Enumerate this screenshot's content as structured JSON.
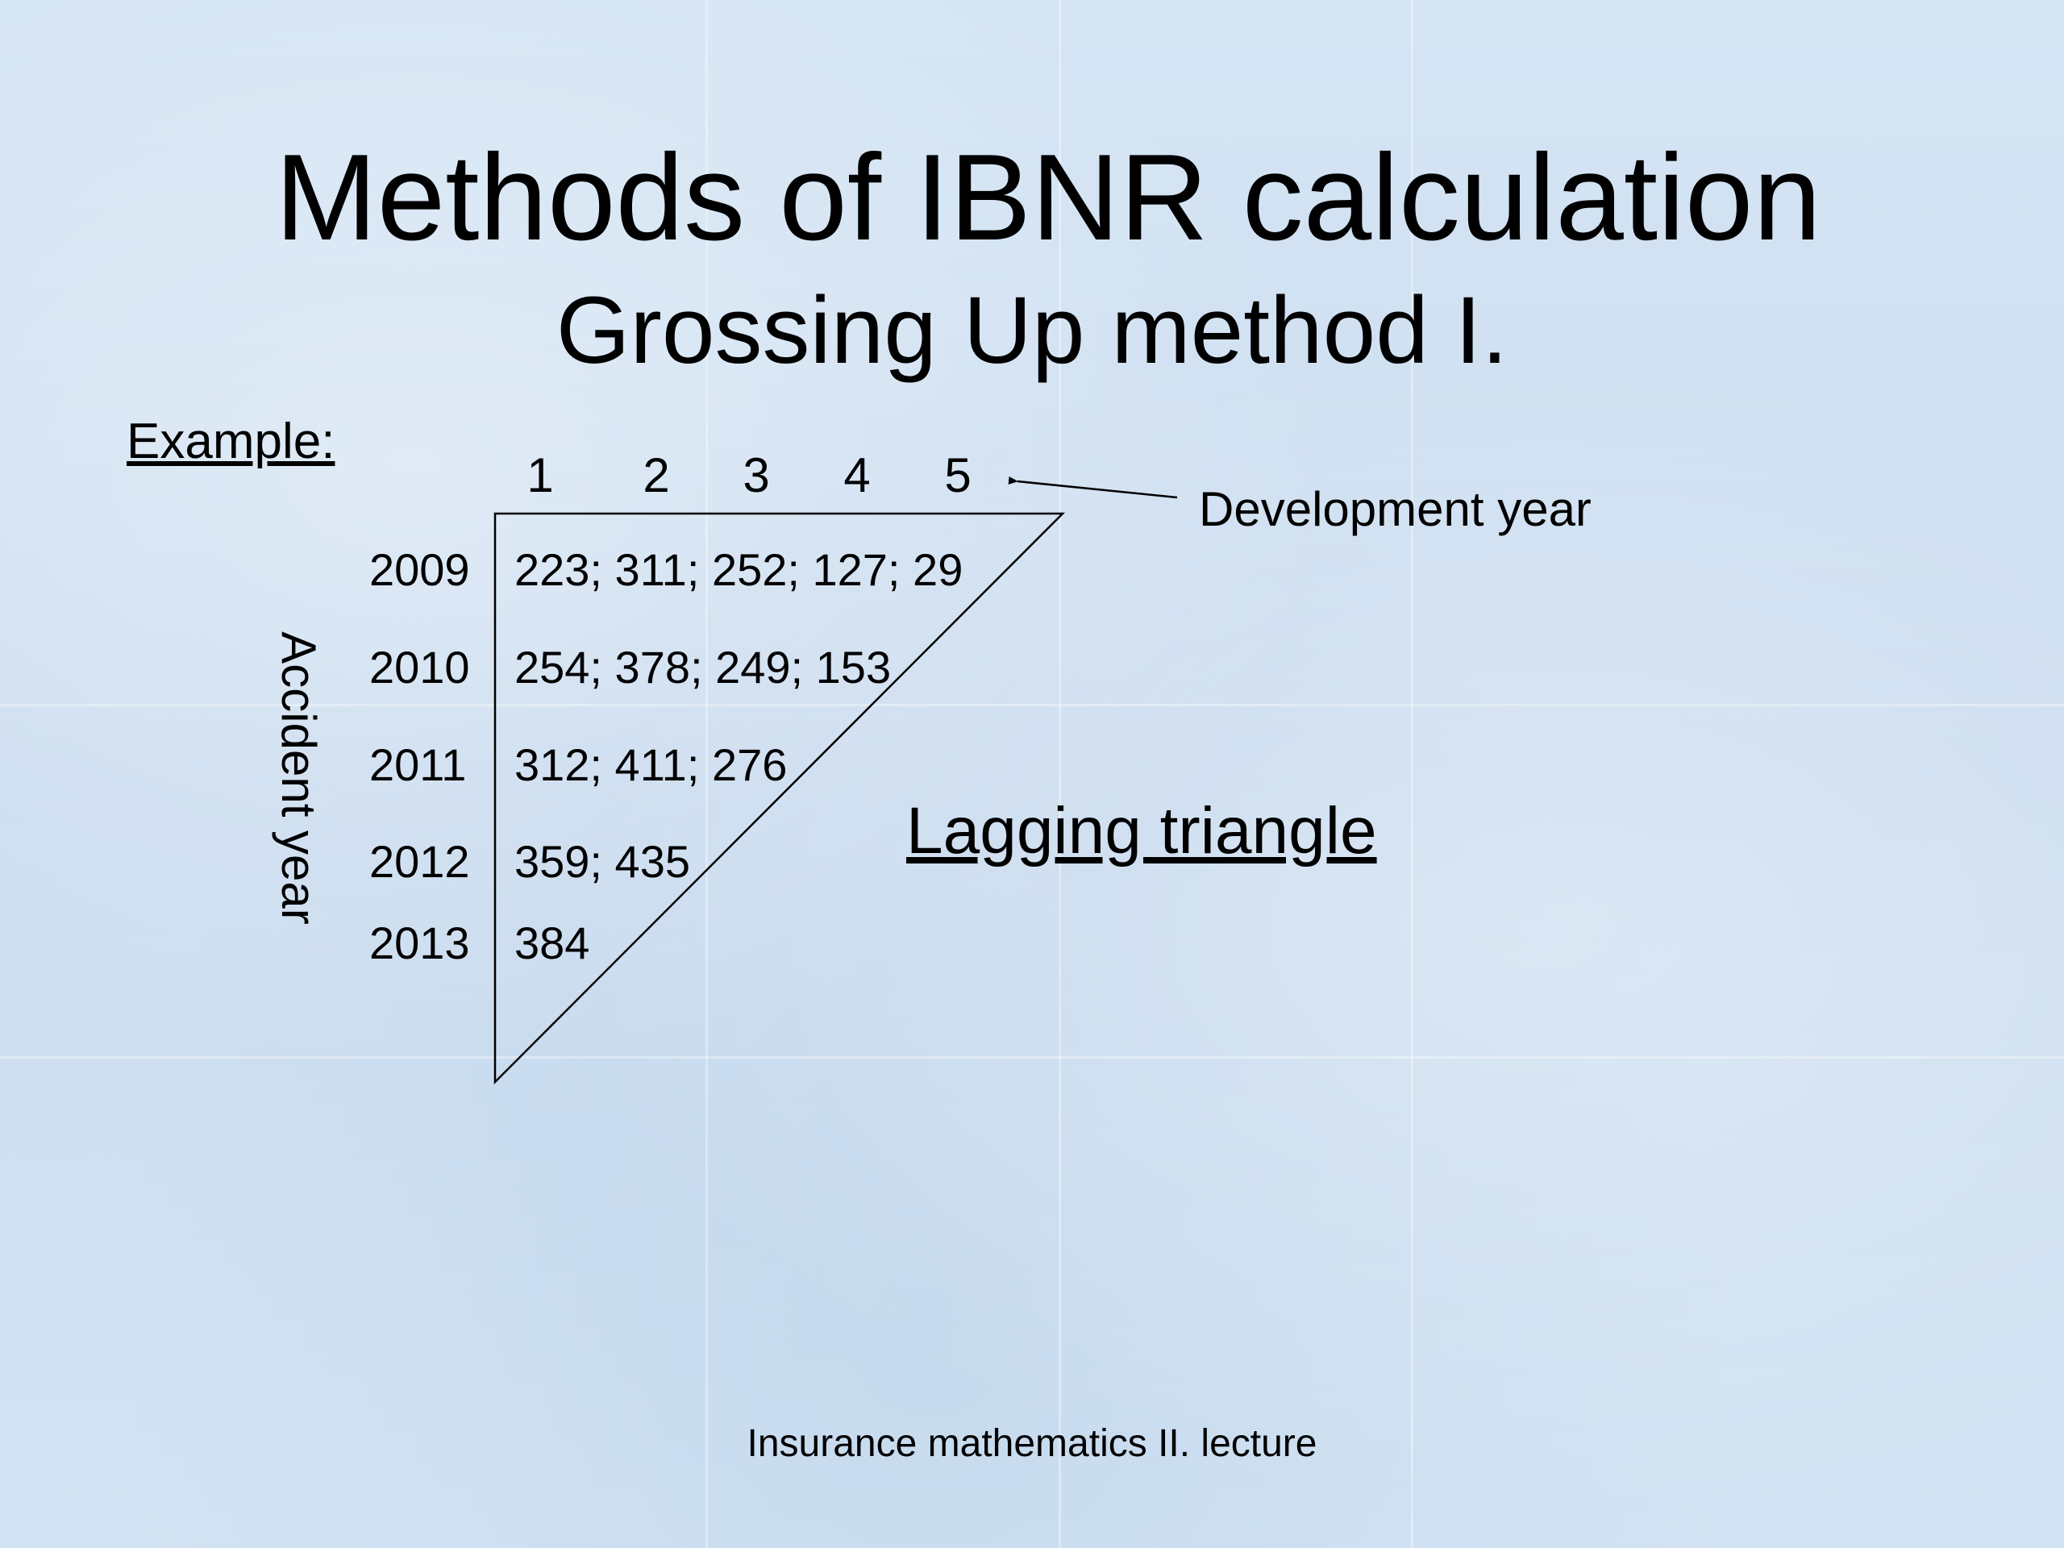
{
  "slide": {
    "title": "Methods of IBNR calculation",
    "subtitle": "Grossing Up method I.",
    "example_label": "Example:",
    "development_year_label": "Development year",
    "accident_year_label": "Accident year",
    "development_years": [
      "1",
      "2",
      "3",
      "4",
      "5"
    ],
    "rows": [
      {
        "year": "2009",
        "values": "223; 311; 252; 127; 29"
      },
      {
        "year": "2010",
        "values": "254; 378; 249; 153"
      },
      {
        "year": "2011",
        "values": "312; 411; 276"
      },
      {
        "year": "2012",
        "values": "359; 435"
      },
      {
        "year": "2013",
        "values": "384"
      }
    ],
    "triangle_label": "Lagging triangle",
    "footer": "Insurance mathematics II. lecture"
  },
  "colors": {
    "background": "#cfe0f1",
    "text": "#000000"
  }
}
